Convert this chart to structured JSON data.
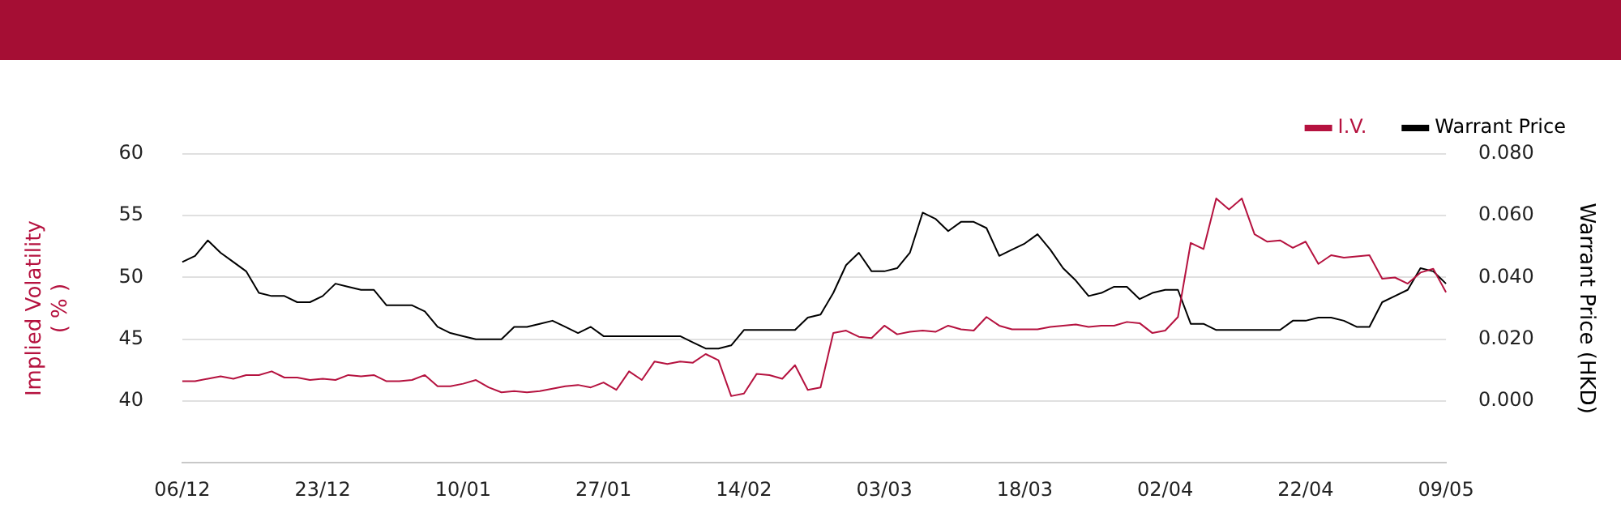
{
  "chart_data": {
    "type": "line",
    "ylabel": "Implied Volatility\n( % )",
    "y2label": "Warrant Price (HKD)",
    "categories": [
      "06/12",
      null,
      null,
      null,
      null,
      null,
      null,
      null,
      null,
      null,
      null,
      "23/12",
      null,
      null,
      null,
      null,
      null,
      null,
      null,
      null,
      null,
      null,
      "10/01",
      null,
      null,
      null,
      null,
      null,
      null,
      null,
      null,
      null,
      null,
      "27/01",
      null,
      null,
      null,
      null,
      null,
      null,
      null,
      null,
      null,
      null,
      "14/02",
      null,
      null,
      null,
      null,
      null,
      null,
      null,
      null,
      null,
      null,
      "03/03",
      null,
      null,
      null,
      null,
      null,
      null,
      null,
      null,
      null,
      null,
      "18/03",
      null,
      null,
      null,
      null,
      null,
      null,
      null,
      null,
      null,
      null,
      "02/04",
      null,
      null,
      null,
      null,
      null,
      null,
      null,
      null,
      null,
      null,
      "22/04",
      null,
      null,
      null,
      null,
      null,
      null,
      null,
      null,
      null,
      null,
      "09/05"
    ],
    "series": [
      {
        "name": "I.V.",
        "color": "#b5123f",
        "values": [
          41.6,
          41.6,
          41.8,
          42.0,
          41.8,
          42.1,
          42.1,
          42.4,
          41.9,
          41.9,
          41.7,
          41.8,
          41.7,
          42.1,
          42.0,
          42.1,
          41.6,
          41.6,
          41.7,
          42.1,
          41.2,
          41.2,
          41.4,
          41.7,
          41.1,
          40.7,
          40.8,
          40.7,
          40.8,
          41.0,
          41.2,
          41.3,
          41.1,
          41.5,
          40.9,
          42.4,
          41.7,
          43.2,
          43.0,
          43.2,
          43.1,
          43.8,
          43.3,
          40.4,
          40.6,
          42.2,
          42.1,
          41.8,
          42.9,
          40.9,
          41.1,
          45.5,
          45.7,
          45.2,
          45.1,
          46.1,
          45.4,
          45.6,
          45.7,
          45.6,
          46.1,
          45.8,
          45.7,
          46.8,
          46.1,
          45.8,
          45.8,
          45.8,
          46.0,
          46.1,
          46.2,
          46.0,
          46.1,
          46.1,
          46.4,
          46.3,
          45.5,
          45.7,
          46.8,
          52.8,
          52.3,
          56.4,
          55.5,
          56.4,
          53.5,
          52.9,
          53.0,
          52.4,
          52.9,
          51.1,
          51.8,
          51.6,
          51.7,
          51.8,
          49.9,
          50.0,
          49.5,
          50.4,
          50.7,
          48.8
        ]
      },
      {
        "name": "Warrant Price",
        "color": "#000000",
        "axis": "y2",
        "values": [
          0.045,
          0.047,
          0.052,
          0.048,
          0.045,
          0.042,
          0.035,
          0.034,
          0.034,
          0.032,
          0.032,
          0.034,
          0.038,
          0.037,
          0.036,
          0.036,
          0.031,
          0.031,
          0.031,
          0.029,
          0.024,
          0.022,
          0.021,
          0.02,
          0.02,
          0.02,
          0.024,
          0.024,
          0.025,
          0.026,
          0.024,
          0.022,
          0.024,
          0.021,
          0.021,
          0.021,
          0.021,
          0.021,
          0.021,
          0.021,
          0.019,
          0.017,
          0.017,
          0.018,
          0.023,
          0.023,
          0.023,
          0.023,
          0.023,
          0.027,
          0.028,
          0.035,
          0.044,
          0.048,
          0.042,
          0.042,
          0.043,
          0.048,
          0.061,
          0.059,
          0.055,
          0.058,
          0.058,
          0.056,
          0.047,
          0.049,
          0.051,
          0.054,
          0.049,
          0.043,
          0.039,
          0.034,
          0.035,
          0.037,
          0.037,
          0.033,
          0.035,
          0.036,
          0.036,
          0.025,
          0.025,
          0.023,
          0.023,
          0.023,
          0.023,
          0.023,
          0.023,
          0.026,
          0.026,
          0.027,
          0.027,
          0.026,
          0.024,
          0.024,
          0.032,
          0.034,
          0.036,
          0.043,
          0.042,
          0.038
        ]
      }
    ],
    "ylim": [
      35,
      60
    ],
    "yticks": [
      40,
      45,
      50,
      55,
      60
    ],
    "y2lim": [
      -0.02,
      0.08
    ],
    "y2ticks": [
      {
        "value": 0,
        "label": "0.000"
      },
      {
        "value": 0.02,
        "label": "0.020"
      },
      {
        "value": 0.04,
        "label": "0.040"
      },
      {
        "value": 0.06,
        "label": "0.060"
      },
      {
        "value": 0.08,
        "label": "0.080"
      }
    ],
    "grid": "y",
    "legend": "top right",
    "marker": "none",
    "line_style": "solid"
  }
}
